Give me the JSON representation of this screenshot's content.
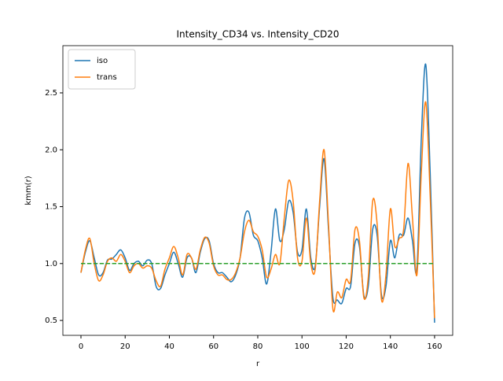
{
  "chart_data": {
    "type": "line",
    "title": "Intensity_CD34 vs. Intensity_CD20",
    "x_label": "r",
    "y_label": "kmm(r)",
    "xlim": [
      -8.18,
      168.2
    ],
    "ylim": [
      0.369,
      2.915
    ],
    "xticks": [
      0,
      20,
      40,
      60,
      80,
      100,
      120,
      140,
      160
    ],
    "yticks": [
      0.5,
      {
        "value": 1.0,
        "label": "1.0"
      },
      1.5,
      {
        "value": 2.0,
        "label": "2.0"
      },
      2.5
    ],
    "legend": "upper left",
    "x": [
      0,
      2,
      4,
      6,
      8,
      10,
      12,
      14,
      16,
      18,
      20,
      22,
      24,
      26,
      28,
      30,
      32,
      34,
      36,
      38,
      40,
      42,
      44,
      46,
      48,
      50,
      52,
      54,
      56,
      58,
      60,
      62,
      64,
      66,
      68,
      70,
      72,
      74,
      76,
      78,
      80,
      82,
      84,
      86,
      88,
      90,
      92,
      94,
      96,
      98,
      100,
      102,
      104,
      106,
      108,
      110,
      112,
      114,
      116,
      118,
      120,
      122,
      124,
      126,
      128,
      130,
      132,
      134,
      136,
      138,
      140,
      142,
      144,
      146,
      148,
      150,
      152,
      154,
      156,
      158,
      160
    ],
    "series": [
      {
        "name": "iso",
        "color": "#1f77b4",
        "values": [
          0.92,
          1.1,
          1.2,
          1.05,
          0.9,
          0.92,
          1.03,
          1.04,
          1.08,
          1.12,
          1.05,
          0.94,
          1.0,
          1.02,
          0.98,
          1.03,
          1.0,
          0.8,
          0.78,
          0.9,
          1.0,
          1.1,
          1.0,
          0.88,
          1.05,
          1.05,
          0.92,
          1.1,
          1.22,
          1.2,
          1.0,
          0.92,
          0.92,
          0.88,
          0.84,
          0.9,
          1.05,
          1.4,
          1.45,
          1.25,
          1.2,
          1.05,
          0.82,
          1.1,
          1.48,
          1.2,
          1.3,
          1.55,
          1.45,
          1.1,
          1.12,
          1.48,
          1.05,
          0.98,
          1.5,
          1.92,
          1.3,
          0.7,
          0.68,
          0.65,
          0.78,
          0.8,
          1.18,
          1.15,
          0.72,
          0.8,
          1.3,
          1.25,
          0.72,
          0.8,
          1.2,
          1.05,
          1.25,
          1.25,
          1.4,
          1.2,
          0.95,
          2.1,
          2.75,
          1.8,
          0.48
        ]
      },
      {
        "name": "trans",
        "color": "#ff7f0e",
        "values": [
          0.92,
          1.12,
          1.22,
          1.0,
          0.85,
          0.9,
          1.02,
          1.05,
          1.02,
          1.08,
          1.02,
          0.92,
          0.98,
          1.0,
          0.96,
          0.98,
          0.96,
          0.85,
          0.8,
          0.95,
          1.05,
          1.15,
          1.05,
          0.9,
          1.08,
          1.05,
          0.95,
          1.12,
          1.23,
          1.18,
          0.98,
          0.9,
          0.9,
          0.86,
          0.86,
          0.92,
          1.05,
          1.28,
          1.38,
          1.28,
          1.24,
          1.12,
          0.88,
          0.95,
          1.08,
          1.0,
          1.4,
          1.73,
          1.55,
          1.05,
          1.02,
          1.4,
          1.0,
          0.95,
          1.55,
          2.0,
          1.35,
          0.6,
          0.75,
          0.7,
          0.86,
          0.85,
          1.3,
          1.2,
          0.7,
          0.88,
          1.55,
          1.35,
          0.68,
          0.9,
          1.48,
          1.15,
          1.22,
          1.3,
          1.88,
          1.4,
          0.9,
          1.8,
          2.42,
          1.6,
          0.52
        ]
      },
      {
        "color": "#2ca02c",
        "dashed": true,
        "x": [
          0,
          160
        ],
        "values": [
          1.0,
          1.0
        ]
      }
    ]
  }
}
